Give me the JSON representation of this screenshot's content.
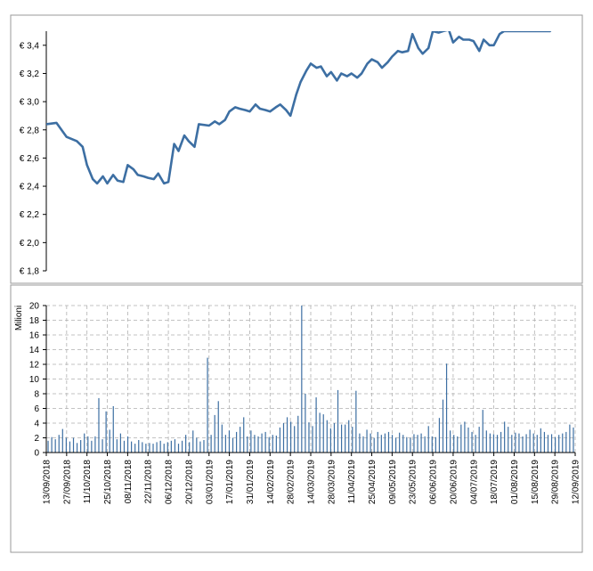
{
  "chart_data": [
    {
      "type": "line",
      "title": "",
      "xlabel": "",
      "ylabel": "",
      "ylim": [
        1.8,
        3.5
      ],
      "y_ticks": [
        "€ 1,8",
        "€ 2,0",
        "€ 2,2",
        "€ 2,4",
        "€ 2,6",
        "€ 2,8",
        "€ 3,0",
        "€ 3,2",
        "€ 3,4"
      ],
      "y_tick_values": [
        1.8,
        2.0,
        2.2,
        2.4,
        2.6,
        2.8,
        3.0,
        3.2,
        3.4
      ],
      "grid": false,
      "color": "#3d6fa3",
      "x": [
        "2018-09-13",
        "2018-09-20",
        "2018-09-27",
        "2018-10-04",
        "2018-10-08",
        "2018-10-11",
        "2018-10-15",
        "2018-10-18",
        "2018-10-22",
        "2018-10-25",
        "2018-10-29",
        "2018-11-01",
        "2018-11-05",
        "2018-11-08",
        "2018-11-12",
        "2018-11-15",
        "2018-11-19",
        "2018-11-22",
        "2018-11-26",
        "2018-11-29",
        "2018-12-03",
        "2018-12-06",
        "2018-12-10",
        "2018-12-13",
        "2018-12-17",
        "2018-12-20",
        "2018-12-24",
        "2018-12-27",
        "2019-01-03",
        "2019-01-07",
        "2019-01-10",
        "2019-01-14",
        "2019-01-17",
        "2019-01-21",
        "2019-01-24",
        "2019-01-28",
        "2019-01-31",
        "2019-02-04",
        "2019-02-07",
        "2019-02-11",
        "2019-02-14",
        "2019-02-18",
        "2019-02-21",
        "2019-02-25",
        "2019-02-28",
        "2019-03-04",
        "2019-03-07",
        "2019-03-11",
        "2019-03-14",
        "2019-03-18",
        "2019-03-21",
        "2019-03-25",
        "2019-03-28",
        "2019-04-01",
        "2019-04-04",
        "2019-04-08",
        "2019-04-11",
        "2019-04-15",
        "2019-04-18",
        "2019-04-22",
        "2019-04-25",
        "2019-04-29",
        "2019-05-02",
        "2019-05-06",
        "2019-05-09",
        "2019-05-13",
        "2019-05-16",
        "2019-05-20",
        "2019-05-23",
        "2019-05-27",
        "2019-05-30",
        "2019-06-03",
        "2019-06-06",
        "2019-06-10",
        "2019-06-13",
        "2019-06-17",
        "2019-06-20",
        "2019-06-24",
        "2019-06-27",
        "2019-07-01",
        "2019-07-04",
        "2019-07-08",
        "2019-07-11",
        "2019-07-15",
        "2019-07-18",
        "2019-07-22",
        "2019-07-25",
        "2019-07-29",
        "2019-08-01",
        "2019-08-05",
        "2019-08-08",
        "2019-08-12",
        "2019-08-15",
        "2019-08-19",
        "2019-08-22",
        "2019-08-26"
      ],
      "values": [
        2.84,
        2.85,
        2.75,
        2.72,
        2.68,
        2.55,
        2.45,
        2.42,
        2.47,
        2.42,
        2.48,
        2.44,
        2.43,
        2.55,
        2.52,
        2.48,
        2.47,
        2.46,
        2.45,
        2.49,
        2.42,
        2.43,
        2.7,
        2.65,
        2.76,
        2.72,
        2.68,
        2.84,
        2.83,
        2.86,
        2.84,
        2.87,
        2.93,
        2.96,
        2.95,
        2.94,
        2.93,
        2.98,
        2.95,
        2.94,
        2.93,
        2.96,
        2.98,
        2.94,
        2.9,
        3.05,
        3.14,
        3.22,
        3.27,
        3.24,
        3.25,
        3.18,
        3.21,
        3.15,
        3.2,
        3.18,
        3.2,
        3.17,
        3.2,
        3.27,
        3.3,
        3.28,
        3.24,
        3.28,
        3.32,
        3.36,
        3.35,
        3.36,
        3.48,
        3.38,
        3.34,
        3.38,
        3.5,
        3.49,
        3.5,
        3.51,
        3.42,
        3.46,
        3.44,
        3.44,
        3.43,
        3.36,
        3.44,
        3.4,
        3.4,
        3.48,
        3.5,
        3.5,
        3.5,
        3.5,
        3.5,
        3.5,
        3.5,
        3.5,
        3.5,
        3.5
      ]
    },
    {
      "type": "bar",
      "title": "",
      "xlabel": "",
      "ylabel": "Milioni",
      "ylim": [
        0,
        20
      ],
      "y_ticks": [
        "0",
        "2",
        "4",
        "6",
        "8",
        "10",
        "12",
        "14",
        "16",
        "18",
        "20"
      ],
      "y_tick_values": [
        0,
        2,
        4,
        6,
        8,
        10,
        12,
        14,
        16,
        18,
        20
      ],
      "grid": true,
      "color": "#3d6fa3",
      "x_ticks": [
        "13/09/2018",
        "27/09/2018",
        "11/10/2018",
        "25/10/2018",
        "08/11/2018",
        "22/11/2018",
        "06/12/2018",
        "20/12/2018",
        "03/01/2019",
        "17/01/2019",
        "31/01/2019",
        "14/02/2019",
        "28/02/2019",
        "14/03/2019",
        "28/03/2019",
        "11/04/2019",
        "25/04/2019",
        "09/05/2019",
        "23/05/2019",
        "06/06/2019",
        "20/06/2019",
        "04/07/2019",
        "18/07/2019",
        "01/08/2019",
        "15/08/2019",
        "29/08/2019",
        "12/09/2019"
      ],
      "values": [
        1.6,
        2.1,
        1.8,
        2.4,
        3.2,
        2.0,
        1.5,
        2.0,
        1.3,
        1.7,
        2.6,
        2.2,
        1.6,
        2.2,
        7.4,
        1.8,
        5.6,
        3.1,
        6.3,
        1.8,
        2.6,
        1.6,
        2.2,
        1.5,
        1.2,
        1.7,
        1.4,
        1.2,
        1.3,
        1.2,
        1.4,
        1.6,
        1.2,
        1.4,
        1.6,
        1.8,
        1.2,
        1.6,
        2.4,
        1.4,
        3.0,
        2.0,
        1.5,
        1.7,
        12.9,
        2.4,
        5.1,
        7.0,
        3.8,
        2.4,
        3.0,
        2.0,
        2.8,
        3.5,
        4.8,
        2.2,
        3.0,
        2.4,
        2.2,
        2.6,
        2.8,
        2.1,
        2.4,
        2.3,
        3.4,
        4.0,
        4.8,
        4.2,
        3.6,
        5.0,
        20.0,
        8.0,
        4.1,
        3.6,
        7.5,
        5.4,
        5.2,
        4.4,
        3.3,
        4.0,
        8.5,
        3.8,
        3.8,
        4.4,
        3.5,
        8.4,
        2.6,
        2.2,
        3.1,
        2.6,
        2.0,
        2.8,
        2.4,
        2.6,
        2.8,
        2.4,
        2.0,
        2.7,
        2.4,
        2.1,
        2.0,
        2.5,
        2.4,
        2.6,
        2.2,
        3.6,
        2.2,
        2.1,
        4.7,
        7.2,
        12.1,
        3.0,
        2.4,
        2.2,
        3.8,
        4.2,
        3.4,
        2.8,
        2.4,
        3.5,
        5.8,
        3.0,
        2.6,
        2.5,
        2.4,
        2.8,
        4.2,
        3.5,
        2.4,
        2.7,
        2.6,
        2.2,
        2.5,
        3.1,
        2.6,
        2.4,
        3.3,
        2.8,
        2.4,
        2.5,
        2.1,
        2.4,
        2.6,
        2.8,
        3.8,
        3.4
      ]
    }
  ]
}
